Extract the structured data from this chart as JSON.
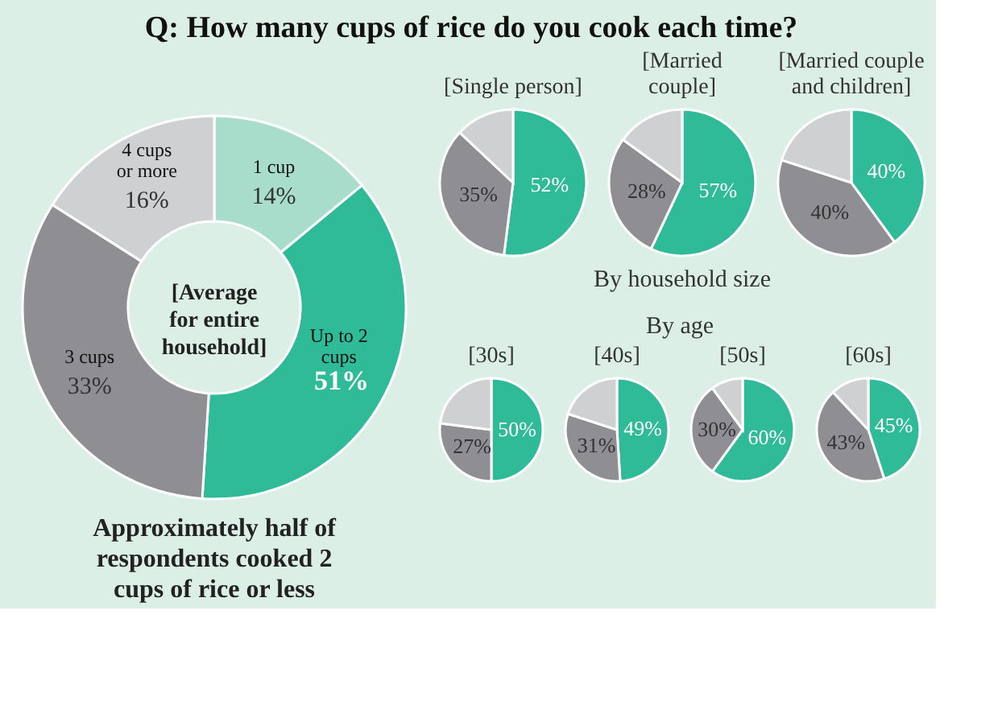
{
  "chart_data": [
    {
      "type": "donut",
      "title": "Q: How many cups of rice do you cook each time?",
      "subtitle": "[Average for entire household]",
      "categories": [
        "1 cup",
        "Up to 2 cups",
        "3 cups",
        "4 cups or more"
      ],
      "values": [
        14,
        37,
        33,
        16
      ],
      "value_labels": [
        "14%",
        null,
        "33%",
        "16%"
      ],
      "colors": [
        "#a8dccb",
        "#2fbb98",
        "#8e8e93",
        "#cfd0d2"
      ],
      "annotations": [
        "Approximately half of respondents cooked 2 cups of rice or less",
        "51%"
      ]
    },
    {
      "type": "pie",
      "title": "[Single person]",
      "categories": [
        null,
        null,
        null
      ],
      "values": [
        52,
        35,
        13
      ],
      "value_labels": [
        "52%",
        "35%",
        null
      ],
      "colors": [
        "#2fbb98",
        "#8e8e93",
        "#cfd0d2"
      ]
    },
    {
      "type": "pie",
      "title": "[Married couple]",
      "categories": [
        null,
        null,
        null
      ],
      "values": [
        57,
        28,
        15
      ],
      "value_labels": [
        "57%",
        "28%",
        null
      ],
      "colors": [
        "#2fbb98",
        "#8e8e93",
        "#cfd0d2"
      ]
    },
    {
      "type": "pie",
      "title": "[Married couple and children]",
      "categories": [
        null,
        null,
        null
      ],
      "values": [
        40,
        40,
        20
      ],
      "value_labels": [
        "40%",
        "40%",
        null
      ],
      "colors": [
        "#2fbb98",
        "#8e8e93",
        "#cfd0d2"
      ],
      "annotations": [
        "By household size"
      ]
    },
    {
      "type": "pie",
      "title": "[30s]",
      "categories": [
        null,
        null,
        null
      ],
      "values": [
        50,
        27,
        23
      ],
      "value_labels": [
        "50%",
        "27%",
        null
      ],
      "colors": [
        "#2fbb98",
        "#8e8e93",
        "#cfd0d2"
      ],
      "annotations": [
        "By age"
      ]
    },
    {
      "type": "pie",
      "title": "[40s]",
      "categories": [
        null,
        null,
        null
      ],
      "values": [
        49,
        31,
        20
      ],
      "value_labels": [
        "49%",
        "31%",
        null
      ],
      "colors": [
        "#2fbb98",
        "#8e8e93",
        "#cfd0d2"
      ]
    },
    {
      "type": "pie",
      "title": "[50s]",
      "categories": [
        null,
        null,
        null
      ],
      "values": [
        60,
        30,
        10
      ],
      "value_labels": [
        "60%",
        "30%",
        null
      ],
      "colors": [
        "#2fbb98",
        "#8e8e93",
        "#cfd0d2"
      ]
    },
    {
      "type": "pie",
      "title": "[60s]",
      "categories": [
        null,
        null,
        null
      ],
      "values": [
        45,
        43,
        12
      ],
      "value_labels": [
        "45%",
        "43%",
        null
      ],
      "colors": [
        "#2fbb98",
        "#8e8e93",
        "#cfd0d2"
      ]
    }
  ]
}
